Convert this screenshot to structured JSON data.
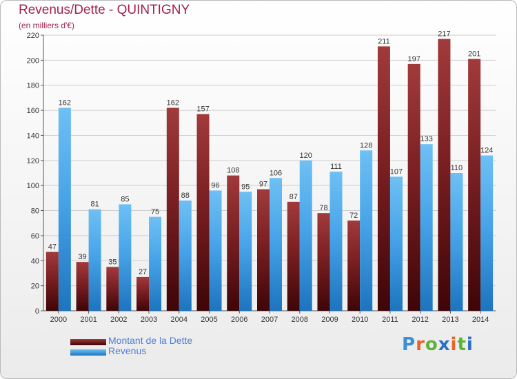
{
  "chart_data": {
    "type": "bar",
    "title": "Revenus/Dette - QUINTIGNY",
    "subtitle": "(en milliers d'€)",
    "categories": [
      "2000",
      "2001",
      "2002",
      "2003",
      "2004",
      "2005",
      "2006",
      "2007",
      "2008",
      "2009",
      "2010",
      "2011",
      "2012",
      "2013",
      "2014"
    ],
    "series": [
      {
        "name": "Montant de la Dette",
        "color": "#7a1f22",
        "values": [
          47,
          39,
          35,
          27,
          162,
          157,
          108,
          97,
          87,
          78,
          72,
          211,
          197,
          217,
          201
        ]
      },
      {
        "name": "Revenus",
        "color": "#48a4e8",
        "values": [
          162,
          81,
          85,
          75,
          88,
          96,
          95,
          106,
          120,
          111,
          128,
          107,
          133,
          110,
          124
        ]
      }
    ],
    "yticks": [
      0,
      20,
      40,
      60,
      80,
      100,
      120,
      140,
      160,
      180,
      200,
      220
    ],
    "ylim": [
      0,
      220
    ],
    "grid": true,
    "legend_position": "bottom-left"
  },
  "logo": {
    "text": "Proxiti",
    "letter_colors": [
      "#3a8fd6",
      "#e8632b",
      "#5db33a",
      "#2c6fc2",
      "#e8632b",
      "#5db33a",
      "#2c6fc2"
    ]
  }
}
